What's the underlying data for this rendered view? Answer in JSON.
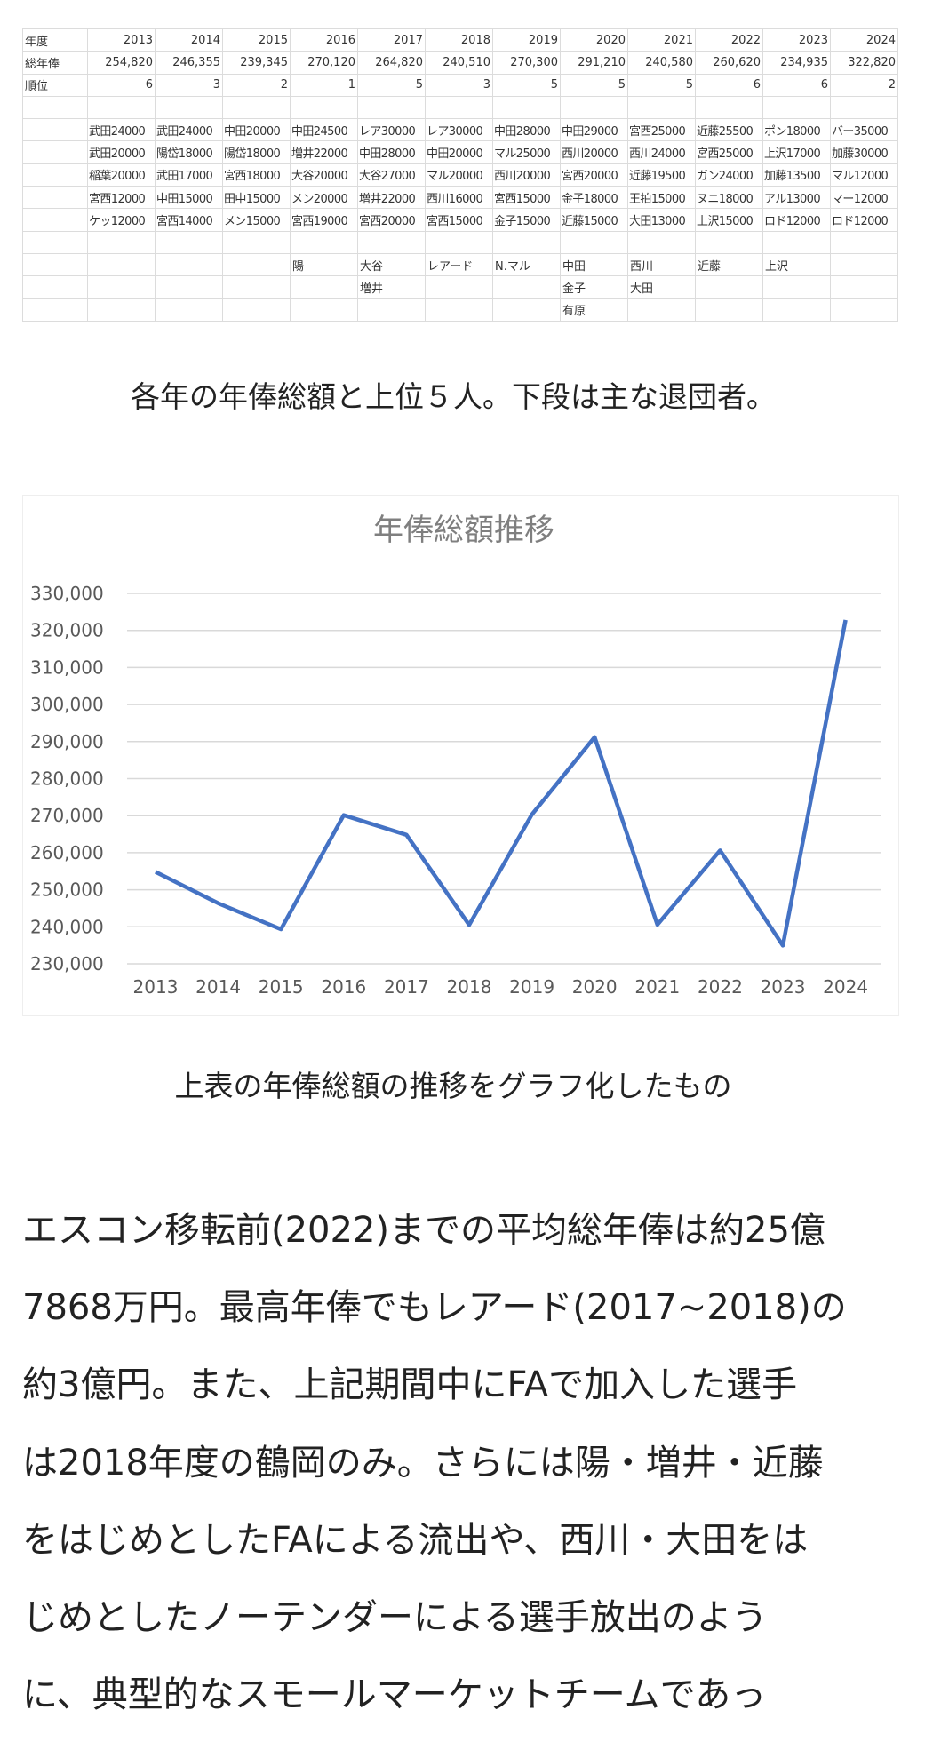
{
  "table": {
    "row_labels": [
      "年度",
      "総年俸",
      "順位"
    ],
    "years": [
      "2013",
      "2014",
      "2015",
      "2016",
      "2017",
      "2018",
      "2019",
      "2020",
      "2021",
      "2022",
      "2023",
      "2024"
    ],
    "totals": [
      "254,820",
      "246,355",
      "239,345",
      "270,120",
      "264,820",
      "240,510",
      "270,300",
      "291,210",
      "240,580",
      "260,620",
      "234,935",
      "322,820"
    ],
    "ranks": [
      "6",
      "3",
      "2",
      "1",
      "5",
      "3",
      "5",
      "5",
      "5",
      "6",
      "6",
      "2"
    ],
    "top5": [
      [
        "武田24000",
        "武田24000",
        "中田20000",
        "中田24500",
        "レア30000",
        "レア30000",
        "中田28000",
        "中田29000",
        "宮西25000",
        "近藤25500",
        "ポン18000",
        "バー35000"
      ],
      [
        "武田20000",
        "陽岱18000",
        "陽岱18000",
        "増井22000",
        "中田28000",
        "中田20000",
        "マル25000",
        "西川20000",
        "西川24000",
        "宮西25000",
        "上沢17000",
        "加藤30000"
      ],
      [
        "稲葉20000",
        "武田17000",
        "宮西18000",
        "大谷20000",
        "大谷27000",
        "マル20000",
        "西川20000",
        "宮西20000",
        "近藤19500",
        "ガン24000",
        "加藤13500",
        "マル12000"
      ],
      [
        "宮西12000",
        "中田15000",
        "田中15000",
        "メン20000",
        "増井22000",
        "西川16000",
        "宮西15000",
        "金子18000",
        "王拍15000",
        "ヌニ18000",
        "アル13000",
        "マー12000"
      ],
      [
        "ケッ12000",
        "宮西14000",
        "メン15000",
        "宮西19000",
        "宮西20000",
        "宮西15000",
        "金子15000",
        "近藤15000",
        "大田13000",
        "上沢15000",
        "ロド12000",
        "ロド12000"
      ]
    ],
    "departures": [
      [
        "",
        "",
        "",
        "陽",
        "大谷",
        "レアード",
        "N.マル",
        "中田",
        "西川",
        "近藤",
        "上沢",
        ""
      ],
      [
        "",
        "",
        "",
        "",
        "増井",
        "",
        "",
        "金子",
        "大田",
        "",
        "",
        ""
      ],
      [
        "",
        "",
        "",
        "",
        "",
        "",
        "",
        "有原",
        "",
        "",
        "",
        ""
      ]
    ]
  },
  "caption1": "各年の年俸総額と上位５人。下段は主な退団者。",
  "chart_data": {
    "type": "line",
    "title": "年俸総額推移",
    "categories": [
      "2013",
      "2014",
      "2015",
      "2016",
      "2017",
      "2018",
      "2019",
      "2020",
      "2021",
      "2022",
      "2023",
      "2024"
    ],
    "values": [
      254820,
      246355,
      239345,
      270120,
      264820,
      240510,
      270300,
      291210,
      240580,
      260620,
      234935,
      322820
    ],
    "ylim": [
      230000,
      330000
    ],
    "yticks": [
      "230,000",
      "240,000",
      "250,000",
      "260,000",
      "270,000",
      "280,000",
      "290,000",
      "300,000",
      "310,000",
      "320,000",
      "330,000"
    ],
    "grid": true,
    "line_color": "#4472C4"
  },
  "caption2": "上表の年俸総額の推移をグラフ化したもの",
  "body_lines": [
    "エスコン移転前(2022)までの平均総年俸は約25億",
    "7868万円。最高年俸でもレアード(2017~2018)の",
    "約3億円。また、上記期間中にFAで加入した選手",
    "は2018年度の鶴岡のみ。さらには陽・増井・近藤",
    "をはじめとしたFAによる流出や、西川・大田をは",
    "じめとしたノーテンダーによる選手放出のよう",
    "に、典型的なスモールマーケットチームであっ"
  ]
}
